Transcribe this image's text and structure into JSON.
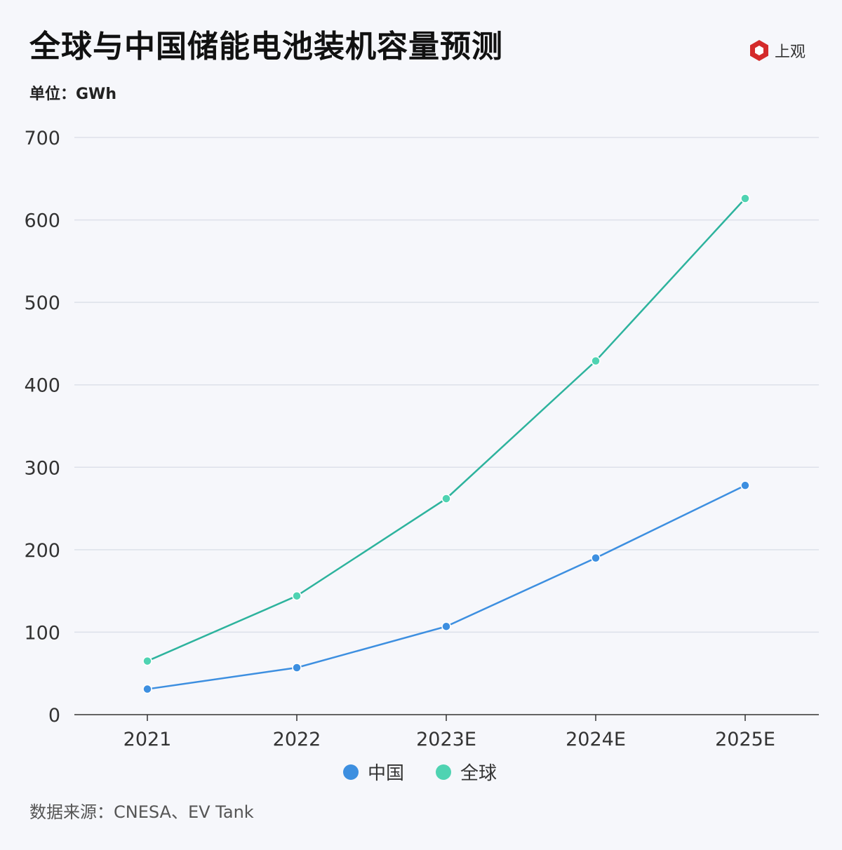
{
  "title": "全球与中国储能电池装机容量预测",
  "unit_label": "单位：GWh",
  "source": "数据来源：CNESA、EV Tank",
  "logo": {
    "text": "上观",
    "color": "#d42b2b"
  },
  "chart_data": {
    "type": "line",
    "title": "全球与中国储能电池装机容量预测",
    "ylabel": "单位：GWh",
    "categories": [
      "2021",
      "2022",
      "2023E",
      "2024E",
      "2025E"
    ],
    "ylim": [
      0,
      700
    ],
    "yticks": [
      0,
      100,
      200,
      300,
      400,
      500,
      600,
      700
    ],
    "grid": true,
    "legend_placement": "bottom",
    "series": [
      {
        "name": "中国",
        "values": [
          31,
          57,
          107,
          190,
          278
        ],
        "color": "#3d8fe0"
      },
      {
        "name": "全球",
        "values": [
          65,
          144,
          262,
          429,
          626
        ],
        "color": "#2db39d",
        "marker_color": "#4fd3b2"
      }
    ]
  }
}
